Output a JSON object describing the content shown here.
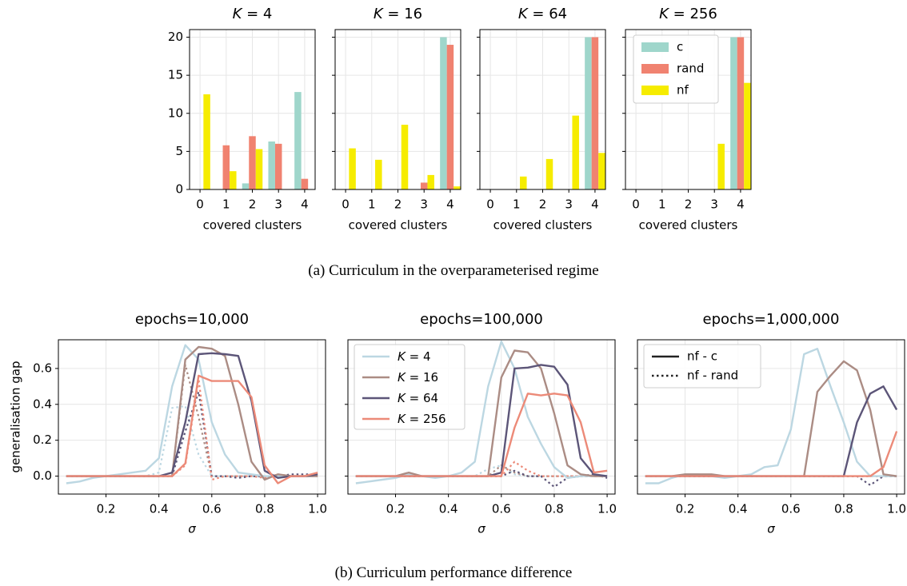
{
  "colors": {
    "c": "#9fd6cb",
    "rand": "#f08270",
    "nf": "#f6ec00",
    "k4": "#bcd7e2",
    "k16": "#ab8c84",
    "k64": "#5c5578",
    "k256": "#ec8a78",
    "grid": "#e6e6e6"
  },
  "captions": {
    "a": "(a) Curriculum in the overparameterised regime",
    "b": "(b) Curriculum performance difference"
  },
  "chart_data": [
    {
      "type": "bar",
      "title": "K = 4",
      "xlabel": "covered clusters",
      "ylabel": "",
      "categories": [
        0,
        1,
        2,
        3,
        4
      ],
      "ylim": [
        0,
        21
      ],
      "yticks": [
        0,
        5,
        10,
        15,
        20
      ],
      "grid": true,
      "series": [
        {
          "name": "c",
          "color_key": "c",
          "values": [
            0,
            0,
            0.8,
            6.3,
            12.8
          ]
        },
        {
          "name": "rand",
          "color_key": "rand",
          "values": [
            0,
            5.8,
            7.0,
            6.0,
            1.4
          ]
        },
        {
          "name": "nf",
          "color_key": "nf",
          "values": [
            12.5,
            2.4,
            5.3,
            0,
            0
          ]
        }
      ]
    },
    {
      "type": "bar",
      "title": "K = 16",
      "xlabel": "covered clusters",
      "ylabel": "",
      "categories": [
        0,
        1,
        2,
        3,
        4
      ],
      "ylim": [
        0,
        21
      ],
      "yticks": [
        0,
        5,
        10,
        15,
        20
      ],
      "grid": true,
      "series": [
        {
          "name": "c",
          "color_key": "c",
          "values": [
            0,
            0,
            0,
            0,
            20
          ]
        },
        {
          "name": "rand",
          "color_key": "rand",
          "values": [
            0,
            0,
            0,
            0.9,
            19
          ]
        },
        {
          "name": "nf",
          "color_key": "nf",
          "values": [
            5.4,
            3.9,
            8.5,
            1.9,
            0.4
          ]
        }
      ]
    },
    {
      "type": "bar",
      "title": "K = 64",
      "xlabel": "covered clusters",
      "ylabel": "",
      "categories": [
        0,
        1,
        2,
        3,
        4
      ],
      "ylim": [
        0,
        21
      ],
      "yticks": [
        0,
        5,
        10,
        15,
        20
      ],
      "grid": true,
      "series": [
        {
          "name": "c",
          "color_key": "c",
          "values": [
            0,
            0,
            0,
            0,
            20
          ]
        },
        {
          "name": "rand",
          "color_key": "rand",
          "values": [
            0,
            0,
            0,
            0,
            20
          ]
        },
        {
          "name": "nf",
          "color_key": "nf",
          "values": [
            0,
            1.7,
            4.0,
            9.7,
            4.8
          ]
        }
      ]
    },
    {
      "type": "bar",
      "title": "K = 256",
      "xlabel": "covered clusters",
      "ylabel": "",
      "categories": [
        0,
        1,
        2,
        3,
        4
      ],
      "ylim": [
        0,
        21
      ],
      "yticks": [
        0,
        5,
        10,
        15,
        20
      ],
      "grid": true,
      "legend": {
        "position": "top-right",
        "entries": [
          "c",
          "rand",
          "nf"
        ]
      },
      "series": [
        {
          "name": "c",
          "color_key": "c",
          "values": [
            0,
            0,
            0,
            0,
            20
          ]
        },
        {
          "name": "rand",
          "color_key": "rand",
          "values": [
            0,
            0,
            0,
            0,
            20
          ]
        },
        {
          "name": "nf",
          "color_key": "nf",
          "values": [
            0,
            0,
            0,
            6.0,
            14
          ]
        }
      ]
    },
    {
      "type": "line",
      "title": "epochs=10,000",
      "xlabel": "σ",
      "ylabel": "generalisation gap",
      "xlim": [
        0.02,
        1.03
      ],
      "ylim": [
        -0.1,
        0.76
      ],
      "xticks": [
        0.2,
        0.4,
        0.6,
        0.8,
        1.0
      ],
      "yticks": [
        0.0,
        0.2,
        0.4,
        0.6
      ],
      "grid": true,
      "x": [
        0.05,
        0.1,
        0.15,
        0.2,
        0.25,
        0.3,
        0.35,
        0.4,
        0.45,
        0.5,
        0.55,
        0.6,
        0.65,
        0.7,
        0.75,
        0.8,
        0.85,
        0.9,
        0.95,
        1.0
      ],
      "series": [
        {
          "name": "K = 4",
          "color_key": "k4",
          "style": "solid",
          "values": [
            -0.04,
            -0.03,
            -0.01,
            0.0,
            0.01,
            0.02,
            0.03,
            0.1,
            0.5,
            0.73,
            0.65,
            0.3,
            0.12,
            0.02,
            0.01,
            0.0,
            0.0,
            0.0,
            0.0,
            0.0
          ]
        },
        {
          "name": "K = 16",
          "color_key": "k16",
          "style": "solid",
          "values": [
            0.0,
            0.0,
            0.0,
            0.0,
            0.0,
            0.0,
            0.0,
            0.0,
            0.0,
            0.65,
            0.72,
            0.71,
            0.67,
            0.4,
            0.08,
            -0.02,
            0.01,
            0.0,
            0.0,
            0.0
          ]
        },
        {
          "name": "K = 64",
          "color_key": "k64",
          "style": "solid",
          "values": [
            0.0,
            0.0,
            0.0,
            0.0,
            0.0,
            0.0,
            0.0,
            0.0,
            0.02,
            0.3,
            0.68,
            0.685,
            0.68,
            0.67,
            0.42,
            0.03,
            -0.01,
            0.0,
            0.0,
            0.01
          ]
        },
        {
          "name": "K = 256",
          "color_key": "k256",
          "style": "solid",
          "values": [
            0.0,
            0.0,
            0.0,
            0.0,
            0.0,
            0.0,
            0.0,
            0.0,
            0.0,
            0.07,
            0.56,
            0.53,
            0.53,
            0.53,
            0.44,
            0.06,
            -0.04,
            0.0,
            0.0,
            0.02
          ]
        },
        {
          "name": "K = 4",
          "color_key": "k4",
          "style": "dotted",
          "values": [
            0.0,
            0.0,
            0.0,
            0.0,
            0.0,
            0.0,
            0.0,
            0.02,
            0.38,
            0.39,
            0.12,
            0.0,
            0.0,
            0.0,
            0.0,
            0.0,
            0.0,
            0.0,
            0.0,
            0.0
          ]
        },
        {
          "name": "K = 16",
          "color_key": "k16",
          "style": "dotted",
          "values": [
            0.0,
            0.0,
            0.0,
            0.0,
            0.0,
            0.0,
            0.0,
            0.0,
            0.0,
            0.62,
            0.33,
            0.0,
            0.0,
            0.0,
            0.0,
            0.0,
            0.0,
            0.0,
            0.0,
            0.0
          ]
        },
        {
          "name": "K = 64",
          "color_key": "k64",
          "style": "dotted",
          "values": [
            0.0,
            0.0,
            0.0,
            0.0,
            0.0,
            0.0,
            0.0,
            0.0,
            0.0,
            0.25,
            0.47,
            0.0,
            0.0,
            -0.01,
            0.0,
            0.0,
            0.0,
            0.01,
            0.01,
            0.01
          ]
        },
        {
          "name": "K = 256",
          "color_key": "k256",
          "style": "dotted",
          "values": [
            0.0,
            0.0,
            0.0,
            0.0,
            0.0,
            0.0,
            0.0,
            0.0,
            0.0,
            0.06,
            0.54,
            -0.02,
            0.0,
            0.0,
            0.0,
            -0.01,
            0.01,
            0.0,
            0.0,
            0.0
          ]
        }
      ]
    },
    {
      "type": "line",
      "title": "epochs=100,000",
      "xlabel": "σ",
      "ylabel": "",
      "xlim": [
        0.02,
        1.03
      ],
      "ylim": [
        -0.1,
        0.76
      ],
      "xticks": [
        0.2,
        0.4,
        0.6,
        0.8,
        1.0
      ],
      "yticks": [
        0.0,
        0.2,
        0.4,
        0.6
      ],
      "grid": true,
      "legend": {
        "position": "top-left",
        "entries": [
          "K = 4",
          "K = 16",
          "K = 64",
          "K = 256"
        ]
      },
      "x": [
        0.05,
        0.1,
        0.15,
        0.2,
        0.25,
        0.3,
        0.35,
        0.4,
        0.45,
        0.5,
        0.55,
        0.6,
        0.65,
        0.7,
        0.75,
        0.8,
        0.85,
        0.9,
        0.95,
        1.0
      ],
      "series": [
        {
          "name": "K = 4",
          "color_key": "k4",
          "style": "solid",
          "values": [
            -0.04,
            -0.03,
            -0.02,
            -0.01,
            0.01,
            0.0,
            -0.01,
            0.0,
            0.02,
            0.08,
            0.5,
            0.75,
            0.6,
            0.33,
            0.18,
            0.05,
            -0.01,
            0.0,
            0.0,
            0.0
          ]
        },
        {
          "name": "K = 16",
          "color_key": "k16",
          "style": "solid",
          "values": [
            0.0,
            0.0,
            0.0,
            0.0,
            0.02,
            0.0,
            0.0,
            0.0,
            0.0,
            0.0,
            0.0,
            0.55,
            0.7,
            0.69,
            0.6,
            0.35,
            0.06,
            0.01,
            0.0,
            0.0
          ]
        },
        {
          "name": "K = 64",
          "color_key": "k64",
          "style": "solid",
          "values": [
            0.0,
            0.0,
            0.0,
            0.0,
            0.0,
            0.0,
            0.0,
            0.0,
            0.0,
            0.0,
            0.0,
            0.02,
            0.6,
            0.605,
            0.62,
            0.61,
            0.51,
            0.1,
            0.01,
            0.0
          ]
        },
        {
          "name": "K = 256",
          "color_key": "k256",
          "style": "solid",
          "values": [
            0.0,
            0.0,
            0.0,
            0.0,
            0.0,
            0.0,
            0.0,
            0.0,
            0.0,
            0.0,
            0.0,
            0.0,
            0.27,
            0.46,
            0.45,
            0.46,
            0.45,
            0.3,
            0.02,
            0.03
          ]
        },
        {
          "name": "K = 4",
          "color_key": "k4",
          "style": "dotted",
          "values": [
            0.0,
            0.0,
            0.0,
            0.0,
            0.0,
            0.0,
            0.0,
            0.0,
            0.0,
            0.0,
            0.04,
            0.06,
            0.01,
            0.0,
            0.0,
            0.0,
            0.0,
            0.0,
            0.0,
            0.0
          ]
        },
        {
          "name": "K = 16",
          "color_key": "k16",
          "style": "dotted",
          "values": [
            0.0,
            0.0,
            0.0,
            0.0,
            0.0,
            0.0,
            0.0,
            0.0,
            0.0,
            0.0,
            0.0,
            0.06,
            0.02,
            0.0,
            0.0,
            0.0,
            0.0,
            0.0,
            0.0,
            0.0
          ]
        },
        {
          "name": "K = 64",
          "color_key": "k64",
          "style": "dotted",
          "values": [
            0.0,
            0.0,
            0.0,
            0.0,
            0.0,
            0.0,
            0.0,
            0.0,
            0.0,
            0.0,
            0.0,
            0.0,
            0.03,
            0.0,
            0.0,
            -0.06,
            -0.01,
            0.0,
            0.01,
            -0.01
          ]
        },
        {
          "name": "K = 256",
          "color_key": "k256",
          "style": "dotted",
          "values": [
            0.0,
            0.0,
            0.0,
            0.0,
            0.0,
            0.0,
            0.0,
            0.0,
            0.0,
            0.0,
            0.0,
            0.0,
            0.08,
            0.03,
            0.0,
            0.0,
            0.0,
            0.0,
            0.0,
            0.0
          ]
        }
      ]
    },
    {
      "type": "line",
      "title": "epochs=1,000,000",
      "xlabel": "σ",
      "ylabel": "",
      "xlim": [
        0.02,
        1.03
      ],
      "ylim": [
        -0.1,
        0.76
      ],
      "xticks": [
        0.2,
        0.4,
        0.6,
        0.8,
        1.0
      ],
      "yticks": [
        0.0,
        0.2,
        0.4,
        0.6
      ],
      "grid": true,
      "legend": {
        "position": "top-left",
        "entries": [
          "nf - c",
          "nf - rand"
        ]
      },
      "x": [
        0.05,
        0.1,
        0.15,
        0.2,
        0.25,
        0.3,
        0.35,
        0.4,
        0.45,
        0.5,
        0.55,
        0.6,
        0.65,
        0.7,
        0.75,
        0.8,
        0.85,
        0.9,
        0.95,
        1.0
      ],
      "series": [
        {
          "name": "K = 4",
          "color_key": "k4",
          "style": "solid",
          "values": [
            -0.04,
            -0.04,
            -0.01,
            0.01,
            0.01,
            0.0,
            -0.01,
            0.0,
            0.01,
            0.05,
            0.06,
            0.26,
            0.68,
            0.71,
            0.5,
            0.3,
            0.08,
            0.0,
            0.0,
            0.0
          ]
        },
        {
          "name": "K = 16",
          "color_key": "k16",
          "style": "solid",
          "values": [
            0.0,
            0.0,
            0.0,
            0.01,
            0.01,
            0.01,
            0.0,
            0.0,
            0.0,
            0.0,
            0.0,
            0.0,
            0.0,
            0.47,
            0.56,
            0.64,
            0.59,
            0.37,
            0.01,
            0.0
          ]
        },
        {
          "name": "K = 64",
          "color_key": "k64",
          "style": "solid",
          "values": [
            0.0,
            0.0,
            0.0,
            0.0,
            0.0,
            0.0,
            0.0,
            0.0,
            0.0,
            0.0,
            0.0,
            0.0,
            0.0,
            0.0,
            0.0,
            0.0,
            0.3,
            0.46,
            0.5,
            0.37
          ]
        },
        {
          "name": "K = 256",
          "color_key": "k256",
          "style": "solid",
          "values": [
            0.0,
            0.0,
            0.0,
            0.0,
            0.0,
            0.0,
            0.0,
            0.0,
            0.0,
            0.0,
            0.0,
            0.0,
            0.0,
            0.0,
            0.0,
            0.0,
            0.0,
            0.0,
            0.05,
            0.25
          ]
        },
        {
          "name": "K = 4",
          "color_key": "k4",
          "style": "dotted",
          "values": [
            0.0,
            0.0,
            0.0,
            0.0,
            0.0,
            0.0,
            0.0,
            0.0,
            0.0,
            0.0,
            0.0,
            0.0,
            0.0,
            0.0,
            0.0,
            0.0,
            0.0,
            0.0,
            0.0,
            0.0
          ]
        },
        {
          "name": "K = 16",
          "color_key": "k16",
          "style": "dotted",
          "values": [
            0.0,
            0.0,
            0.0,
            0.0,
            0.0,
            0.0,
            0.0,
            0.0,
            0.0,
            0.0,
            0.0,
            0.0,
            0.0,
            0.0,
            0.0,
            0.0,
            0.0,
            0.0,
            0.0,
            0.0
          ]
        },
        {
          "name": "K = 64",
          "color_key": "k64",
          "style": "dotted",
          "values": [
            0.0,
            0.0,
            0.0,
            0.0,
            0.0,
            0.0,
            0.0,
            0.0,
            0.0,
            0.0,
            0.0,
            0.0,
            0.0,
            0.0,
            0.0,
            0.0,
            0.0,
            -0.05,
            0.0,
            0.0
          ]
        },
        {
          "name": "K = 256",
          "color_key": "k256",
          "style": "dotted",
          "values": [
            0.0,
            0.0,
            0.0,
            0.0,
            0.0,
            0.0,
            0.0,
            0.0,
            0.0,
            0.0,
            0.0,
            0.0,
            0.0,
            0.0,
            0.0,
            0.0,
            0.0,
            0.0,
            0.0,
            0.0
          ]
        }
      ]
    }
  ]
}
